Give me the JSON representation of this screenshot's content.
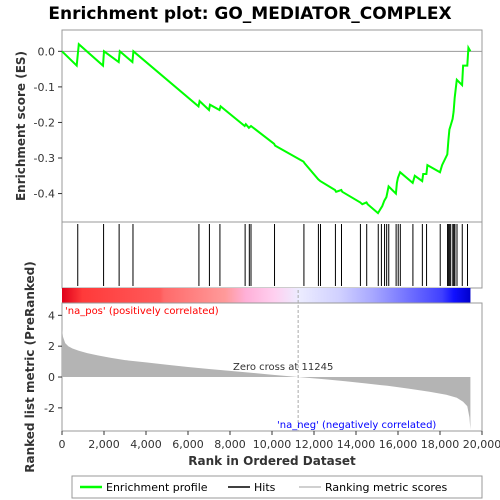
{
  "chart_data": {
    "type": "line",
    "title": "Enrichment plot: GO_MEDIATOR_COMPLEX",
    "es_panel": {
      "ylabel": "Enrichment score (ES)",
      "ylim": [
        -0.48,
        0.06
      ],
      "yticks": [
        0.0,
        -0.1,
        -0.2,
        -0.3,
        -0.4
      ],
      "ytick_labels": [
        "0.0",
        "-0.1",
        "-0.2",
        "-0.3",
        "-0.4"
      ],
      "line_color": "#00ff00",
      "series": [
        {
          "x": [
            0,
            700,
            800,
            1950,
            2000,
            2700,
            2750,
            3350,
            3400,
            6500,
            6550,
            7000,
            7050,
            7500,
            7550,
            8700,
            8750,
            8900,
            9000,
            10100,
            10150,
            11500,
            11550,
            12200,
            12300,
            13000,
            13050,
            13300,
            13350,
            14200,
            14300,
            14500,
            14550,
            15050,
            15200,
            15250,
            15350,
            15450,
            15550,
            15900,
            15950,
            16000,
            16100,
            16700,
            16800,
            17150,
            17200,
            17350,
            17400,
            18000,
            18100,
            18350,
            18400,
            18450,
            18500,
            18600,
            18650,
            18700,
            18800,
            19050,
            19100,
            19300,
            19350,
            19450
          ],
          "y": [
            0.0,
            -0.04,
            0.02,
            -0.04,
            0.0,
            -0.03,
            0.0,
            -0.03,
            0.0,
            -0.155,
            -0.14,
            -0.165,
            -0.15,
            -0.165,
            -0.155,
            -0.21,
            -0.205,
            -0.215,
            -0.21,
            -0.26,
            -0.265,
            -0.31,
            -0.315,
            -0.36,
            -0.365,
            -0.39,
            -0.395,
            -0.39,
            -0.395,
            -0.425,
            -0.43,
            -0.425,
            -0.43,
            -0.455,
            -0.44,
            -0.435,
            -0.42,
            -0.41,
            -0.38,
            -0.4,
            -0.37,
            -0.355,
            -0.34,
            -0.37,
            -0.35,
            -0.365,
            -0.345,
            -0.345,
            -0.32,
            -0.34,
            -0.32,
            -0.29,
            -0.25,
            -0.22,
            -0.21,
            -0.19,
            -0.17,
            -0.13,
            -0.08,
            -0.095,
            -0.04,
            -0.04,
            0.01,
            0.0
          ]
        }
      ]
    },
    "hits_panel": {
      "hit_positions": [
        750,
        1980,
        2720,
        3380,
        6520,
        7020,
        7520,
        8720,
        8920,
        9000,
        10120,
        11520,
        12210,
        12310,
        13020,
        13310,
        14210,
        14510,
        15060,
        15210,
        15360,
        15460,
        15560,
        15910,
        16010,
        16110,
        16710,
        17160,
        17360,
        18010,
        18360,
        18410,
        18460,
        18510,
        18610,
        18660,
        18710,
        18810,
        19060,
        19310
      ]
    },
    "ranked_panel": {
      "ylabel": "Ranked list metric (PreRanked)",
      "ylim": [
        -3.5,
        4.8
      ],
      "yticks": [
        4,
        2,
        0,
        -2
      ],
      "ytick_labels": [
        "4",
        "2",
        "0",
        "-2"
      ],
      "xlabel": "Rank in Ordered Dataset",
      "xlim": [
        0,
        20000
      ],
      "xticks": [
        0,
        2000,
        4000,
        6000,
        8000,
        10000,
        12000,
        14000,
        16000,
        18000,
        20000
      ],
      "xtick_labels": [
        "0",
        "2,000",
        "4,000",
        "6,000",
        "8,000",
        "10,000",
        "12,000",
        "14,000",
        "16,000",
        "18,000",
        "20,000"
      ],
      "metric_curve": {
        "x": [
          0,
          50,
          150,
          300,
          500,
          800,
          1200,
          1700,
          2300,
          3000,
          4000,
          5000,
          6000,
          7000,
          8000,
          9000,
          10000,
          11245,
          12500,
          13500,
          14500,
          15500,
          16500,
          17500,
          18300,
          18800,
          19100,
          19300,
          19400,
          19450
        ],
        "y": [
          3.1,
          2.6,
          2.2,
          2.0,
          1.85,
          1.7,
          1.55,
          1.4,
          1.25,
          1.1,
          0.95,
          0.8,
          0.65,
          0.52,
          0.4,
          0.28,
          0.15,
          0.0,
          -0.15,
          -0.28,
          -0.42,
          -0.57,
          -0.75,
          -0.95,
          -1.15,
          -1.35,
          -1.6,
          -1.9,
          -2.6,
          -3.4
        ]
      },
      "zero_cross": 11245,
      "zero_cross_label": "Zero cross at 11245",
      "pos_label": "'na_pos' (positively correlated)",
      "neg_label": "'na_neg' (negatively correlated)",
      "pos_color": "#ff0000",
      "neg_color": "#0000ff"
    },
    "legend": [
      {
        "label": "Enrichment profile",
        "color": "#00ff00"
      },
      {
        "label": "Hits",
        "color": "#000000"
      },
      {
        "label": "Ranking metric scores",
        "color": "#c0c0c0"
      }
    ]
  }
}
